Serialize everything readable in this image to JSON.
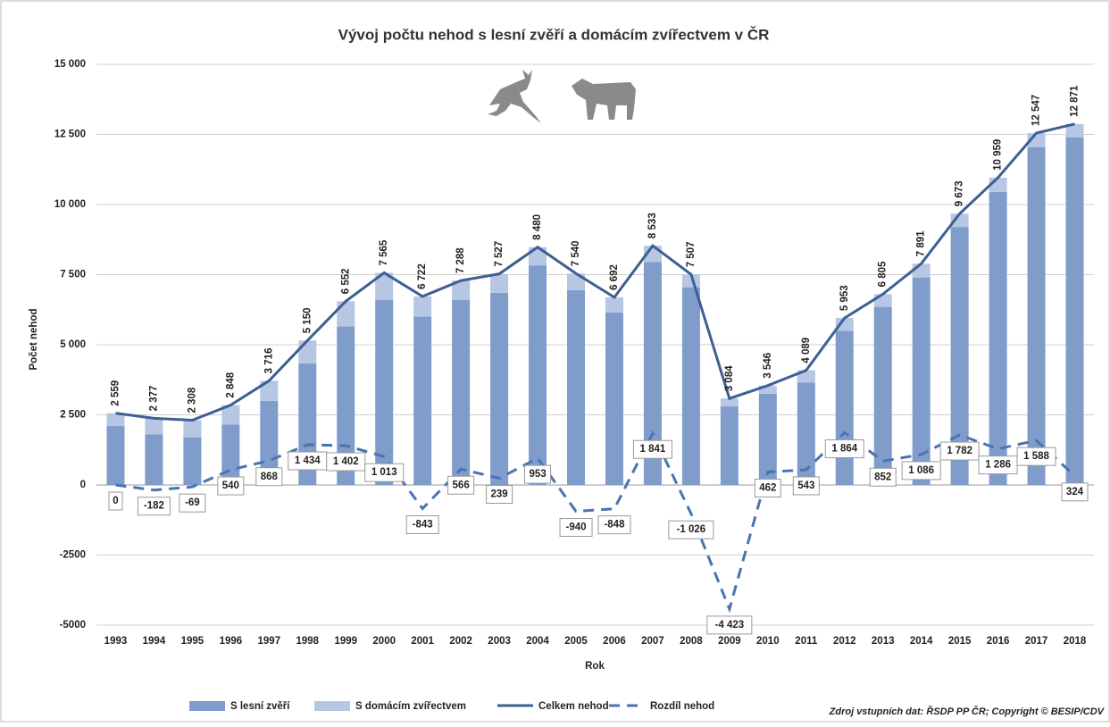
{
  "chart_data": {
    "type": "bar",
    "title": "Vývoj počtu nehod s lesní zvěří a domácím zvířectvem v ČR",
    "x_label": "Rok",
    "y_label": "Počet nehod",
    "source": "Zdroj vstupních dat: ŘSDP PP ČR; Copyright © BESIP/CDV",
    "categories": [
      "1993",
      "1994",
      "1995",
      "1996",
      "1997",
      "1998",
      "1999",
      "2000",
      "2001",
      "2002",
      "2003",
      "2004",
      "2005",
      "2006",
      "2007",
      "2008",
      "2009",
      "2010",
      "2011",
      "2012",
      "2013",
      "2014",
      "2015",
      "2016",
      "2017",
      "2018"
    ],
    "ylim": [
      -5000,
      15000
    ],
    "yticks": [
      {
        "value": -5000,
        "label": "-5000"
      },
      {
        "value": -2500,
        "label": "-2500"
      },
      0,
      {
        "value": 2500,
        "label": "2 500"
      },
      {
        "value": 5000,
        "label": "5 000"
      },
      {
        "value": 7500,
        "label": "7 500"
      },
      {
        "value": 10000,
        "label": "10 000"
      },
      {
        "value": 12500,
        "label": "12 500"
      },
      {
        "value": 15000,
        "label": "15 000"
      }
    ],
    "grid": true,
    "series": [
      {
        "name": "S lesní zvěří",
        "type": "bar",
        "color": "#7f9ccb",
        "values": [
          2100,
          1800,
          1700,
          2150,
          3000,
          4330,
          5650,
          6600,
          6000,
          6600,
          6850,
          7830,
          6950,
          6150,
          7950,
          7050,
          2800,
          3250,
          3650,
          5500,
          6350,
          7400,
          9200,
          10450,
          12050,
          12400
        ]
      },
      {
        "name": "S domácím zvířectvem",
        "type": "bar",
        "color": "#b6c6e3",
        "values": [
          459,
          577,
          608,
          698,
          716,
          820,
          902,
          965,
          722,
          688,
          677,
          650,
          590,
          542,
          583,
          457,
          284,
          296,
          439,
          453,
          455,
          491,
          473,
          509,
          497,
          471
        ]
      },
      {
        "name": "Celkem nehod",
        "type": "line",
        "color": "#3d5f94",
        "values": [
          2559,
          2377,
          2308,
          2848,
          3716,
          5150,
          6552,
          7565,
          6722,
          7288,
          7527,
          8480,
          7540,
          6692,
          8533,
          7507,
          3084,
          3546,
          4089,
          5953,
          6805,
          7891,
          9673,
          10959,
          12547,
          12871
        ],
        "value_labels": [
          "2 559",
          "2 377",
          "2 308",
          "2 848",
          "3 716",
          "5 150",
          "6 552",
          "7 565",
          "6 722",
          "7 288",
          "7 527",
          "8 480",
          "7 540",
          "6 692",
          "8 533",
          "7 507",
          "3 084",
          "3 546",
          "4 089",
          "5 953",
          "6 805",
          "7 891",
          "9 673",
          "10 959",
          "12 547",
          "12 871"
        ]
      },
      {
        "name": "Rozdíl nehod",
        "type": "dashed",
        "color": "#4a74b0",
        "values": [
          0,
          -182,
          -69,
          540,
          868,
          1434,
          1402,
          1013,
          -843,
          566,
          239,
          953,
          -940,
          -848,
          1841,
          -1026,
          -4423,
          462,
          543,
          1864,
          852,
          1086,
          1782,
          1286,
          1588,
          324
        ],
        "value_labels": [
          "0",
          "-182",
          "-69",
          "540",
          "868",
          "1 434",
          "1 402",
          "1 013",
          "-843",
          "566",
          "239",
          "953",
          "-940",
          "-848",
          "1 841",
          "-1 026",
          "-4 423",
          "462",
          "543",
          "1 864",
          "852",
          "1 086",
          "1 782",
          "1 286",
          "1 588",
          "324"
        ]
      }
    ]
  }
}
